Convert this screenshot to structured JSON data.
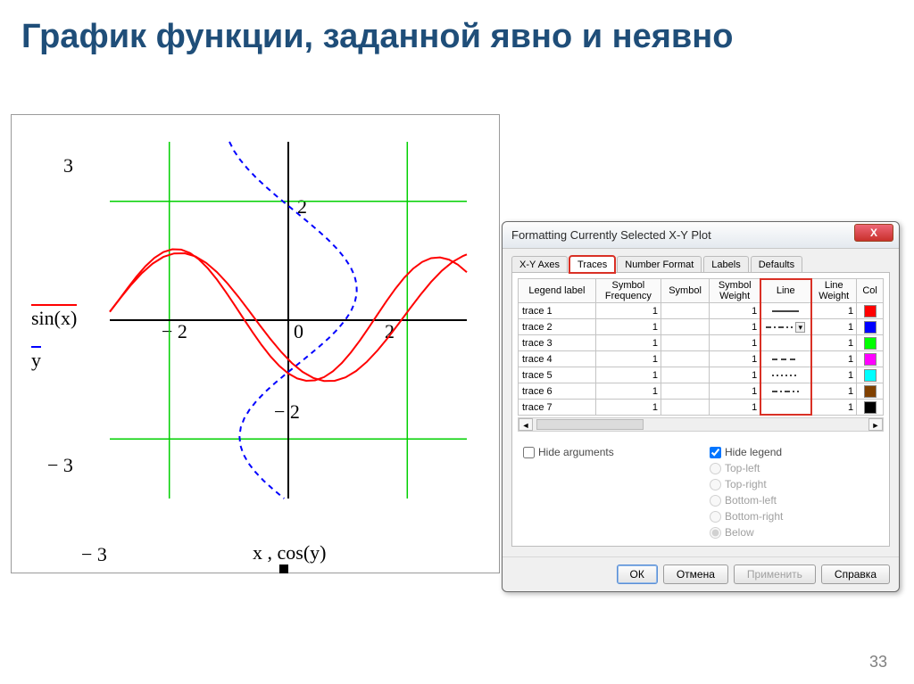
{
  "title": "График функции, заданной явно и неявно",
  "page_number": "33",
  "chart": {
    "type": "line",
    "xlim": [
      -3,
      3
    ],
    "ylim": [
      -3,
      3
    ],
    "xtick_labels": [
      "− 2",
      "0",
      "2"
    ],
    "ytick_labels": [
      "2",
      "− 2"
    ],
    "yrange_top": "3",
    "yrange_bot": "− 3",
    "xrange_left": "− 3",
    "axis_caption": "x , cos(y)",
    "legend_sin": "sin(x)",
    "legend_y": "y",
    "axis_color": "#000000",
    "grid_color": "#00d000",
    "series": {
      "sin": {
        "color": "#ff0000",
        "width": 2,
        "dash": "none"
      },
      "cosy": {
        "color": "#0000ff",
        "width": 2,
        "dash": "5,4"
      }
    },
    "background": "#ffffff"
  },
  "dialog": {
    "title": "Formatting Currently Selected X-Y Plot",
    "tabs": [
      "X-Y Axes",
      "Traces",
      "Number Format",
      "Labels",
      "Defaults"
    ],
    "active_tab": 1,
    "highlight_tab": 1,
    "table": {
      "headers": [
        "Legend label",
        "Symbol Frequency",
        "Symbol",
        "Symbol Weight",
        "Line",
        "Line Weight",
        "Col"
      ],
      "rows": [
        {
          "label": "trace 1",
          "freq": "1",
          "sym": "",
          "sw": "1",
          "line": "solid",
          "lw": "1",
          "color": "#ff0000"
        },
        {
          "label": "trace 2",
          "freq": "1",
          "sym": "",
          "sw": "1",
          "line": "dashdot",
          "lw": "1",
          "color": "#0000ff",
          "dropdown": true
        },
        {
          "label": "trace 3",
          "freq": "1",
          "sym": "",
          "sw": "1",
          "line": "none",
          "lw": "1",
          "color": "#00ff00"
        },
        {
          "label": "trace 4",
          "freq": "1",
          "sym": "",
          "sw": "1",
          "line": "dash",
          "lw": "1",
          "color": "#ff00ff"
        },
        {
          "label": "trace 5",
          "freq": "1",
          "sym": "",
          "sw": "1",
          "line": "dot",
          "lw": "1",
          "color": "#00ffff"
        },
        {
          "label": "trace 6",
          "freq": "1",
          "sym": "",
          "sw": "1",
          "line": "dashdot2",
          "lw": "1",
          "color": "#804000"
        },
        {
          "label": "trace 7",
          "freq": "1",
          "sym": "",
          "sw": "1",
          "line": "none",
          "lw": "1",
          "color": "#000000"
        }
      ]
    },
    "hide_arguments_label": "Hide arguments",
    "hide_legend_label": "Hide legend",
    "hide_arguments_checked": false,
    "hide_legend_checked": true,
    "positions": {
      "tl": "Top-left",
      "tr": "Top-right",
      "bl": "Bottom-left",
      "br": "Bottom-right",
      "below": "Below"
    },
    "buttons": {
      "ok": "ОК",
      "cancel": "Отмена",
      "apply": "Применить",
      "help": "Справка"
    }
  }
}
